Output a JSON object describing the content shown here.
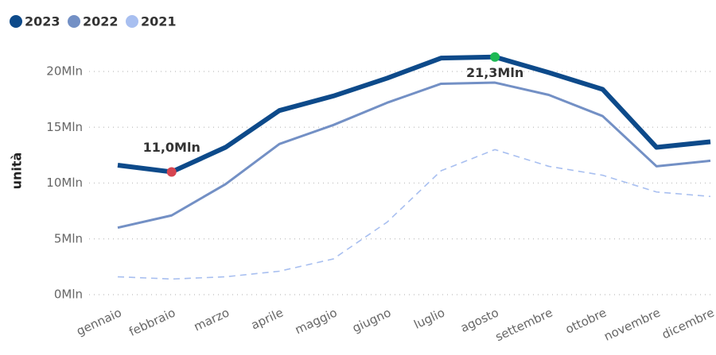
{
  "chart_data": {
    "type": "line",
    "categories": [
      "gennaio",
      "febbraio",
      "marzo",
      "aprile",
      "maggio",
      "giugno",
      "luglio",
      "agosto",
      "settembre",
      "ottobre",
      "novembre",
      "dicembre"
    ],
    "series": [
      {
        "name": "2023",
        "color": "#0d4a8a",
        "values": [
          11.6,
          11.0,
          13.2,
          16.5,
          17.8,
          19.4,
          21.2,
          21.3,
          19.9,
          18.4,
          13.2,
          13.7
        ],
        "value_labels": [
          null,
          "11,0Mln",
          null,
          null,
          null,
          null,
          null,
          "21,3Mln",
          null,
          null,
          null,
          null
        ],
        "marker_colors": [
          null,
          "#d64550",
          null,
          null,
          null,
          null,
          null,
          "#1db954",
          null,
          null,
          null,
          null
        ]
      },
      {
        "name": "2022",
        "color": "#7390c5",
        "values": [
          6.0,
          7.1,
          9.9,
          13.5,
          15.2,
          17.2,
          18.9,
          19.0,
          17.9,
          16.0,
          11.5,
          12.0
        ]
      },
      {
        "name": "2021",
        "color": "#a8bff0",
        "dashed": true,
        "values": [
          1.6,
          1.4,
          1.6,
          2.1,
          3.2,
          6.5,
          11.1,
          13.0,
          11.5,
          10.7,
          9.2,
          8.8
        ]
      }
    ],
    "ylabel": "unità",
    "ylim": [
      0,
      22
    ],
    "yticks": [
      {
        "value": 0,
        "label": "0Mln"
      },
      {
        "value": 5,
        "label": "5Mln"
      },
      {
        "value": 10,
        "label": "10Mln"
      },
      {
        "value": 15,
        "label": "15Mln"
      },
      {
        "value": 20,
        "label": "20Mln"
      }
    ],
    "grid": true,
    "legend": "top-left"
  }
}
